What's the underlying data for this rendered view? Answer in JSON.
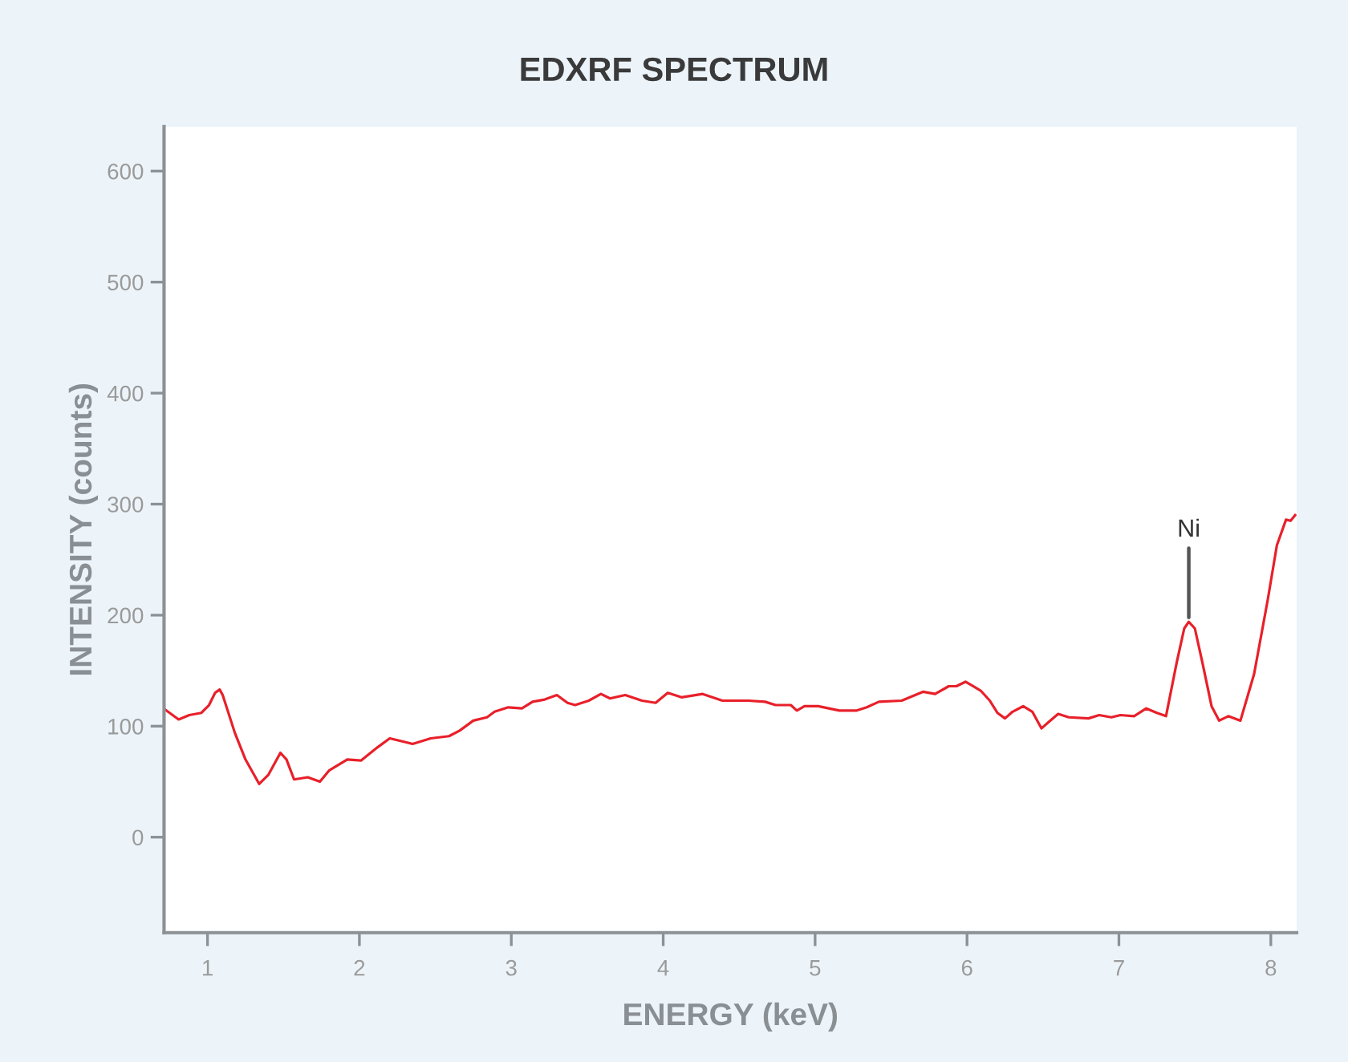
{
  "chart_data": {
    "type": "line",
    "title": "EDXRF SPECTRUM",
    "xlabel": "ENERGY (keV)",
    "ylabel": "INTENSITY (counts)",
    "annotations": [
      {
        "text": "Ni",
        "x": 7.46,
        "y": 194
      }
    ],
    "x": [
      0.72,
      0.81,
      0.88,
      0.96,
      1.01,
      1.05,
      1.08,
      1.1,
      1.18,
      1.25,
      1.34,
      1.4,
      1.48,
      1.52,
      1.57,
      1.66,
      1.74,
      1.8,
      1.92,
      2.01,
      2.12,
      2.2,
      2.35,
      2.47,
      2.59,
      2.66,
      2.75,
      2.84,
      2.89,
      2.98,
      3.07,
      3.14,
      3.22,
      3.3,
      3.37,
      3.42,
      3.51,
      3.59,
      3.65,
      3.75,
      3.86,
      3.95,
      4.03,
      4.12,
      4.26,
      4.39,
      4.56,
      4.67,
      4.74,
      4.84,
      4.88,
      4.93,
      5.02,
      5.16,
      5.27,
      5.34,
      5.42,
      5.57,
      5.71,
      5.79,
      5.88,
      5.93,
      5.99,
      6.04,
      6.09,
      6.15,
      6.2,
      6.25,
      6.3,
      6.37,
      6.43,
      6.49,
      6.54,
      6.6,
      6.67,
      6.8,
      6.87,
      6.95,
      7.01,
      7.1,
      7.18,
      7.25,
      7.31,
      7.38,
      7.43,
      7.46,
      7.5,
      7.55,
      7.61,
      7.66,
      7.72,
      7.8,
      7.89,
      7.98,
      8.04,
      8.1,
      8.13,
      8.16
    ],
    "series": [
      {
        "color": "#e8202a",
        "values": [
          115,
          106,
          110,
          112,
          119,
          130,
          133,
          128,
          94,
          70,
          48,
          56,
          76,
          70,
          52,
          54,
          50,
          60,
          70,
          69,
          81,
          89,
          84,
          89,
          91,
          96,
          105,
          108,
          113,
          117,
          116,
          122,
          124,
          128,
          121,
          119,
          123,
          129,
          125,
          128,
          123,
          121,
          130,
          126,
          129,
          123,
          123,
          122,
          119,
          119,
          114,
          118,
          118,
          114,
          114,
          117,
          122,
          123,
          131,
          129,
          136,
          136,
          140,
          136,
          132,
          123,
          112,
          107,
          113,
          118,
          113,
          98,
          104,
          111,
          108,
          107,
          110,
          108,
          110,
          109,
          116,
          112,
          109,
          157,
          188,
          194,
          188,
          157,
          118,
          105,
          109,
          105,
          147,
          214,
          263,
          286,
          285,
          290
        ]
      }
    ],
    "xlim": [
      0.714,
      8.17
    ],
    "ylim": [
      -86,
      640
    ],
    "xticks": [
      1,
      2,
      3,
      4,
      5,
      6,
      7,
      8
    ],
    "yticks": [
      0,
      100,
      200,
      300,
      400,
      500,
      600
    ],
    "line_style": "solid"
  }
}
